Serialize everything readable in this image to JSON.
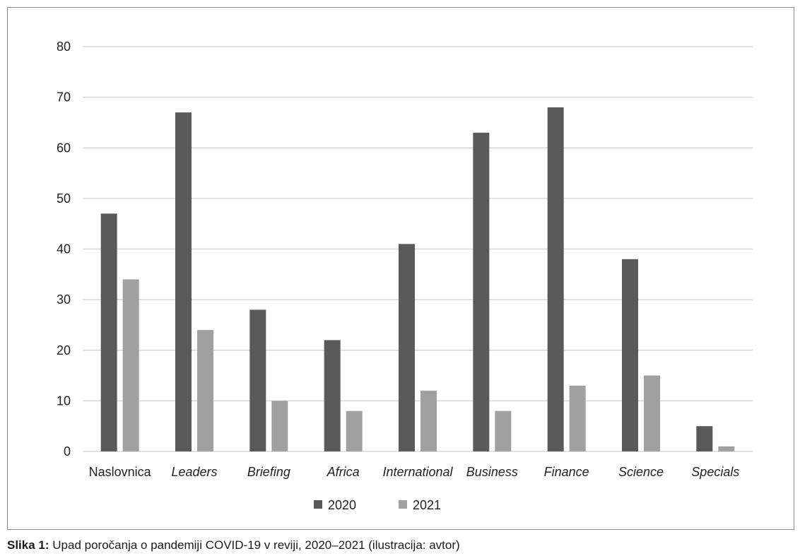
{
  "chart_data": {
    "type": "bar",
    "categories": [
      "Naslovnica",
      "Leaders",
      "Briefing",
      "Africa",
      "International",
      "Business",
      "Finance",
      "Science",
      "Specials"
    ],
    "category_italic": [
      false,
      true,
      true,
      true,
      true,
      true,
      true,
      true,
      true
    ],
    "series": [
      {
        "name": "2020",
        "values": [
          47,
          67,
          28,
          22,
          41,
          63,
          68,
          38,
          5
        ],
        "color": "#5a5a5a"
      },
      {
        "name": "2021",
        "values": [
          34,
          24,
          10,
          8,
          12,
          8,
          13,
          15,
          1
        ],
        "color": "#a0a0a0"
      }
    ],
    "ylim": [
      0,
      80
    ],
    "yticks": [
      "0",
      "10",
      "20",
      "30",
      "40",
      "50",
      "60",
      "70",
      "80"
    ],
    "grid": true,
    "legend_position": "bottom",
    "gridline_color": "#d0d0d0"
  },
  "caption": {
    "label": "Slika 1:",
    "text": " Upad poročanja o pandemiji COVID-19 v reviji, 2020–2021 (ilustracija: avtor)"
  }
}
